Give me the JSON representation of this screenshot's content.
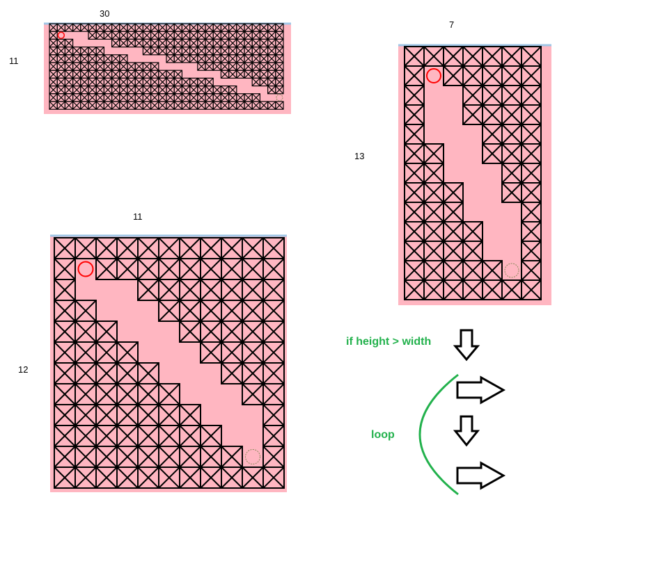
{
  "grids": [
    {
      "id": "grid-30x11",
      "columns": 30,
      "rows": 11,
      "width_label": "30",
      "height_label": "11",
      "start": [
        1,
        1
      ],
      "goal": [
        29,
        9
      ],
      "open_cells": [
        [
          1,
          1
        ],
        [
          2,
          1
        ],
        [
          3,
          1
        ],
        [
          4,
          1
        ],
        [
          3,
          2
        ],
        [
          4,
          2
        ],
        [
          5,
          2
        ],
        [
          6,
          2
        ],
        [
          7,
          2
        ],
        [
          7,
          3
        ],
        [
          8,
          3
        ],
        [
          9,
          3
        ],
        [
          10,
          3
        ],
        [
          11,
          3
        ],
        [
          10,
          4
        ],
        [
          11,
          4
        ],
        [
          12,
          4
        ],
        [
          13,
          4
        ],
        [
          14,
          4
        ],
        [
          14,
          5
        ],
        [
          15,
          5
        ],
        [
          16,
          5
        ],
        [
          17,
          5
        ],
        [
          18,
          5
        ],
        [
          17,
          6
        ],
        [
          18,
          6
        ],
        [
          19,
          6
        ],
        [
          20,
          6
        ],
        [
          21,
          6
        ],
        [
          21,
          7
        ],
        [
          22,
          7
        ],
        [
          23,
          7
        ],
        [
          24,
          7
        ],
        [
          25,
          7
        ],
        [
          24,
          8
        ],
        [
          25,
          8
        ],
        [
          26,
          8
        ],
        [
          27,
          8
        ],
        [
          27,
          9
        ],
        [
          28,
          9
        ],
        [
          29,
          9
        ]
      ]
    },
    {
      "id": "grid-7x13",
      "columns": 7,
      "rows": 13,
      "width_label": "7",
      "height_label": "13",
      "start": [
        1,
        1
      ],
      "goal": [
        5,
        11
      ],
      "open_cells": [
        [
          1,
          1
        ],
        [
          1,
          2
        ],
        [
          2,
          2
        ],
        [
          1,
          3
        ],
        [
          2,
          3
        ],
        [
          1,
          4
        ],
        [
          2,
          4
        ],
        [
          3,
          4
        ],
        [
          2,
          5
        ],
        [
          3,
          5
        ],
        [
          2,
          6
        ],
        [
          3,
          6
        ],
        [
          4,
          6
        ],
        [
          3,
          7
        ],
        [
          4,
          7
        ],
        [
          3,
          8
        ],
        [
          4,
          8
        ],
        [
          5,
          8
        ],
        [
          4,
          9
        ],
        [
          5,
          9
        ],
        [
          4,
          10
        ],
        [
          5,
          10
        ],
        [
          5,
          11
        ]
      ]
    },
    {
      "id": "grid-11x12",
      "columns": 11,
      "rows": 12,
      "width_label": "11",
      "height_label": "12",
      "start": [
        1,
        1
      ],
      "goal": [
        9,
        10
      ],
      "open_cells": [
        [
          1,
          1
        ],
        [
          1,
          2
        ],
        [
          2,
          2
        ],
        [
          3,
          2
        ],
        [
          2,
          3
        ],
        [
          3,
          3
        ],
        [
          4,
          3
        ],
        [
          3,
          4
        ],
        [
          4,
          4
        ],
        [
          5,
          4
        ],
        [
          4,
          5
        ],
        [
          5,
          5
        ],
        [
          6,
          5
        ],
        [
          5,
          6
        ],
        [
          6,
          6
        ],
        [
          7,
          6
        ],
        [
          6,
          7
        ],
        [
          7,
          7
        ],
        [
          8,
          7
        ],
        [
          7,
          8
        ],
        [
          8,
          8
        ],
        [
          9,
          8
        ],
        [
          8,
          9
        ],
        [
          9,
          9
        ],
        [
          9,
          10
        ]
      ]
    }
  ],
  "notes": {
    "condition": "if height > width",
    "loop": "loop"
  },
  "colors": {
    "cell_fill": "#ffb6c1",
    "grid_line": "#000000",
    "top_edge": "#9fc6e6",
    "start_marker": "#ff0000",
    "goal_marker": "#8a8a5a",
    "annotation": "#22b14c"
  }
}
